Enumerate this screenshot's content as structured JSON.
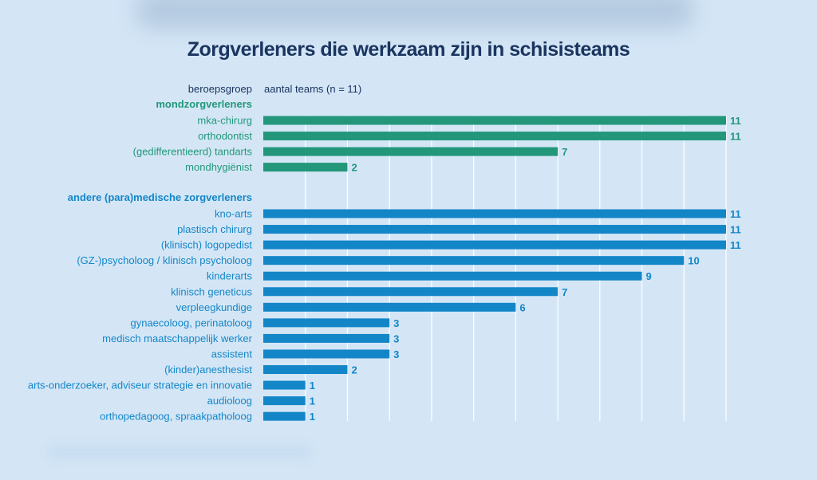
{
  "chart_data": {
    "type": "bar",
    "orientation": "horizontal",
    "title": "Zorgverleners die werkzaam zijn in schisisteams",
    "category_header": "beroepsgroep",
    "value_header": "aantal teams  (n = 11)",
    "xlim": [
      0,
      11
    ],
    "grid": true,
    "groups": [
      {
        "name": "mondzorgverleners",
        "color": "#22977a",
        "categories": [
          "mka-chirurg",
          "orthodontist",
          "(gedifferentieerd) tandarts",
          "mondhygiënist"
        ],
        "values": [
          11,
          11,
          7,
          2
        ]
      },
      {
        "name": "andere (para)medische zorgverleners",
        "color": "#1386c8",
        "categories": [
          "kno-arts",
          "plastisch chirurg",
          "(klinisch) logopedist",
          "(GZ-)psycholoog / klinisch psycholoog",
          "kinderarts",
          "klinisch geneticus",
          "verpleegkundige",
          "gynaecoloog, perinatoloog",
          "medisch maatschappelijk werker",
          "assistent",
          "(kinder)anesthesist",
          "arts-onderzoeker, adviseur strategie en innovatie",
          "audioloog",
          "orthopedagoog, spraakpatholoog"
        ],
        "values": [
          11,
          11,
          11,
          10,
          9,
          7,
          6,
          3,
          3,
          3,
          2,
          1,
          1,
          1
        ]
      }
    ]
  }
}
